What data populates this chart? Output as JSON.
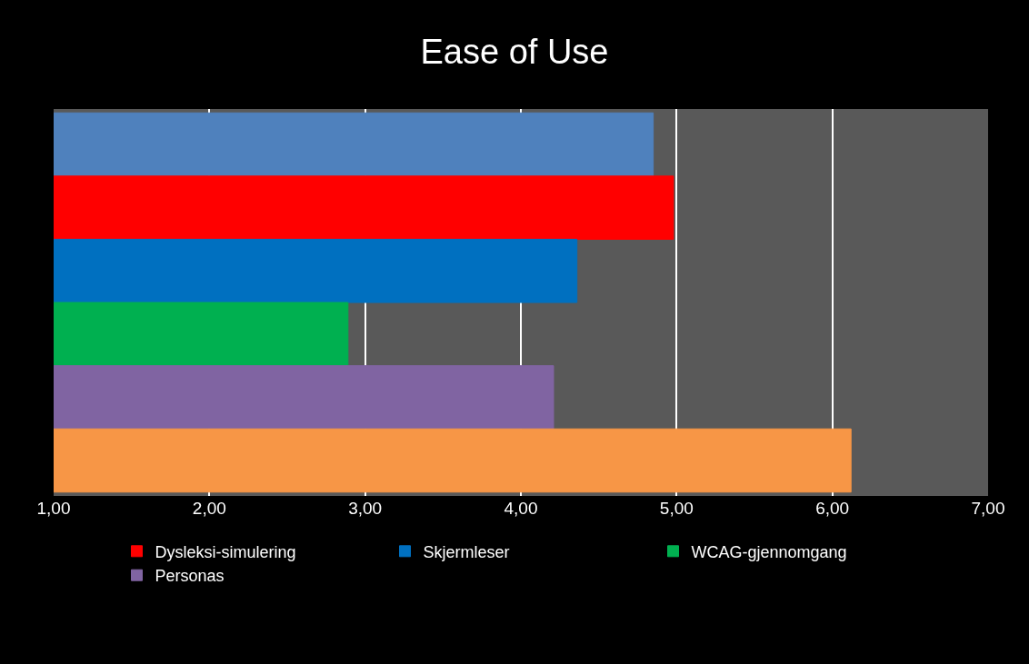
{
  "chart_data": {
    "type": "bar",
    "orientation": "horizontal",
    "title": "Ease of Use",
    "categories": [
      null
    ],
    "series": [
      {
        "color": "#4f81bd",
        "values": [
          4.85
        ]
      },
      {
        "name": "Dysleksi-simulering",
        "color": "#ff0000",
        "values": [
          4.98
        ]
      },
      {
        "name": "Skjermleser",
        "color": "#0070c0",
        "values": [
          4.36
        ]
      },
      {
        "name": "WCAG-gjennomgang",
        "color": "#00b050",
        "values": [
          2.89
        ]
      },
      {
        "name": "Personas",
        "color": "#8064a2",
        "values": [
          4.21
        ]
      },
      {
        "color": "#f79646",
        "values": [
          6.12
        ]
      }
    ],
    "xlim": [
      1,
      7
    ],
    "xticks": [
      {
        "value": 1,
        "label": "1,00"
      },
      {
        "value": 2,
        "label": "2,00"
      },
      {
        "value": 3,
        "label": "3,00"
      },
      {
        "value": 4,
        "label": "4,00"
      },
      {
        "value": 5,
        "label": "5,00"
      },
      {
        "value": 6,
        "label": "6,00"
      },
      {
        "value": 7,
        "label": "7,00"
      }
    ],
    "grid": "x",
    "legend": "bottom"
  }
}
